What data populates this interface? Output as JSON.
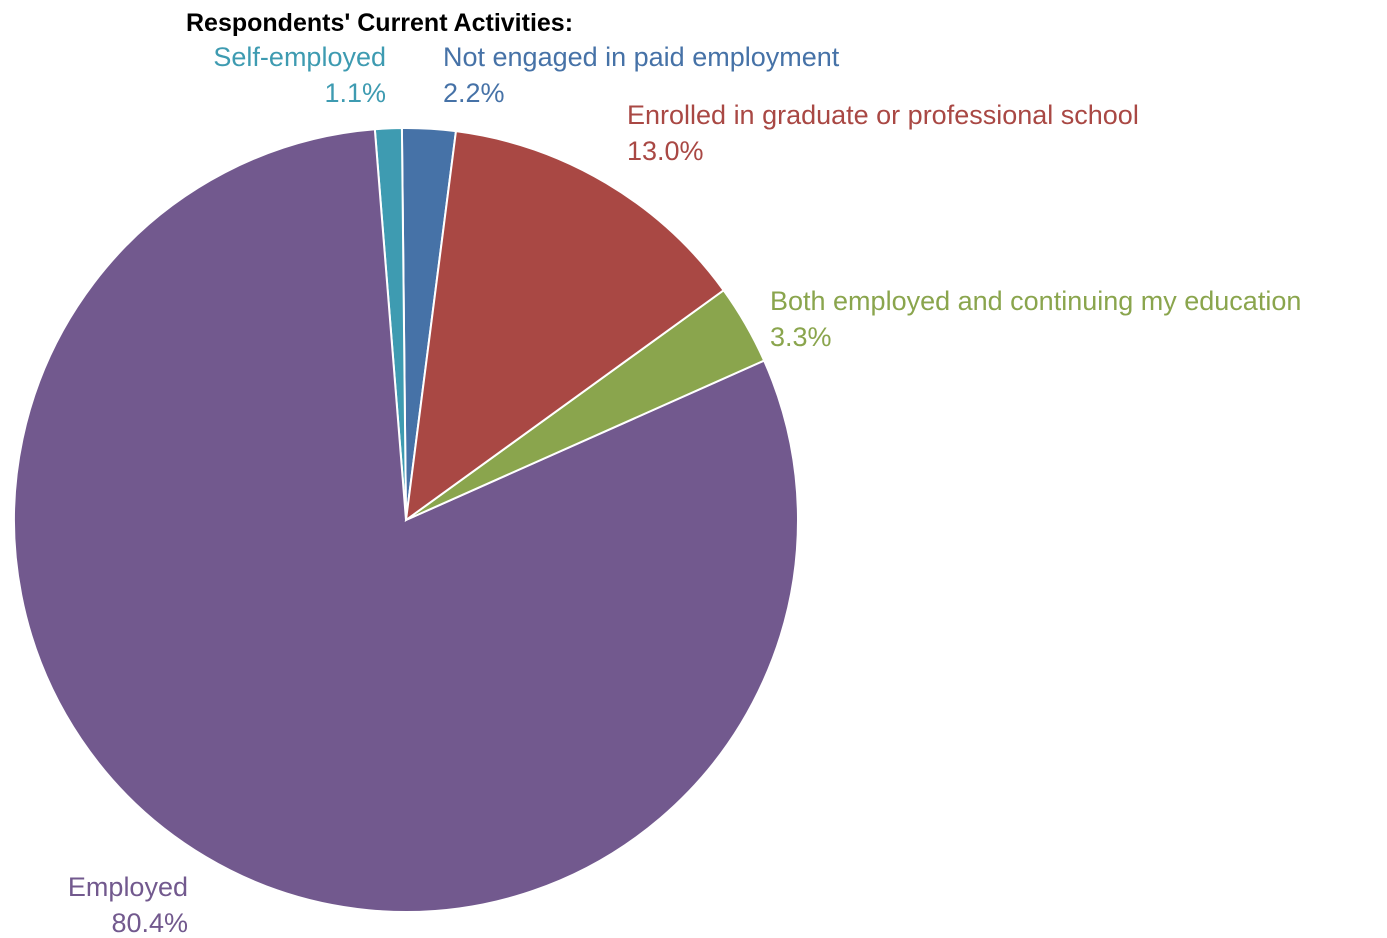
{
  "chart_data": {
    "type": "pie",
    "title": "Respondents' Current Activities:",
    "start_angle_deg": -11,
    "direction": "counterclockwise",
    "slices": [
      {
        "label": "Not engaged in paid employment",
        "value": 2.2,
        "value_label": "2.2%",
        "color": "#4672a7"
      },
      {
        "label": "Self-employed",
        "value": 1.1,
        "value_label": "1.1%",
        "color": "#3e9bb1"
      },
      {
        "label": "Employed",
        "value": 80.4,
        "value_label": "80.4%",
        "color": "#72598e"
      },
      {
        "label": "Both employed and continuing my education",
        "value": 3.3,
        "value_label": "3.3%",
        "color": "#8aa54d"
      },
      {
        "label": "Enrolled in graduate or professional school",
        "value": 13.0,
        "value_label": "13.0%",
        "color": "#a94844"
      }
    ]
  }
}
